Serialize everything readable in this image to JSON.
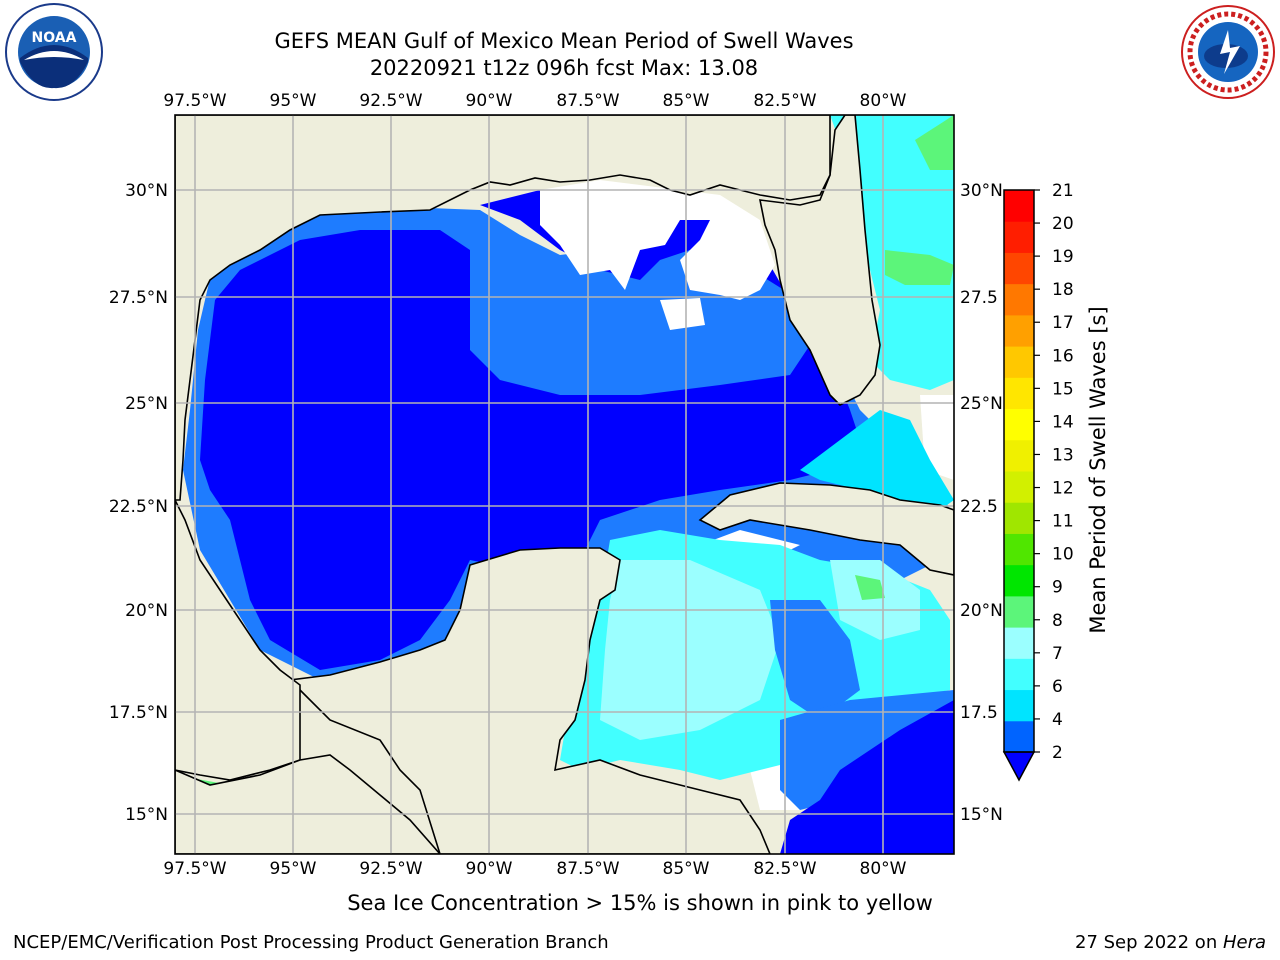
{
  "header": {
    "title_line1": "GEFS MEAN Gulf of Mexico Mean Period of Swell Waves",
    "title_line2": "20220921 t12z 096h fcst   Max: 13.08"
  },
  "logos": {
    "left": {
      "name": "noaa-logo",
      "text": "NOAA"
    },
    "right": {
      "name": "national-weather-service-logo",
      "text": "NATIONAL WEATHER SERVICE"
    }
  },
  "map": {
    "lon_labels": [
      "97.5°W",
      "95°W",
      "92.5°W",
      "90°W",
      "87.5°W",
      "85°W",
      "82.5°W",
      "80°W"
    ],
    "lat_labels_left": [
      "30°N",
      "27.5°N",
      "25°N",
      "22.5°N",
      "20°N",
      "17.5°N",
      "15°N"
    ],
    "lat_labels_right": [
      "30°N",
      "27.5",
      "25°N",
      "22.5",
      "20°N",
      "17.5",
      "15°N"
    ],
    "colors": {
      "land": "#eeeedc",
      "ocean_dark": "#0000ff",
      "ocean_mid": "#1e7cff",
      "grid": "#b4b4b4"
    }
  },
  "colorbar": {
    "label": "Mean Period of Swell Waves [s]",
    "ticks": [
      "2",
      "4",
      "6",
      "7",
      "8",
      "9",
      "10",
      "11",
      "12",
      "13",
      "14",
      "15",
      "16",
      "17",
      "18",
      "19",
      "20",
      "21"
    ],
    "colors": [
      "#0064ff",
      "#00e4ff",
      "#42ffff",
      "#9bffff",
      "#5cf57a",
      "#00e600",
      "#50e600",
      "#a0e600",
      "#d2f000",
      "#f0f000",
      "#ffff00",
      "#ffe600",
      "#ffc800",
      "#ffa000",
      "#ff7800",
      "#ff4600",
      "#ff1e00",
      "#ff0000"
    ]
  },
  "note": "Sea Ice Concentration > 15% is shown in pink to yellow",
  "footer": {
    "left": "NCEP/EMC/Verification Post Processing Product Generation Branch",
    "right_prefix": "27 Sep 2022 on ",
    "right_host": "Hera"
  }
}
